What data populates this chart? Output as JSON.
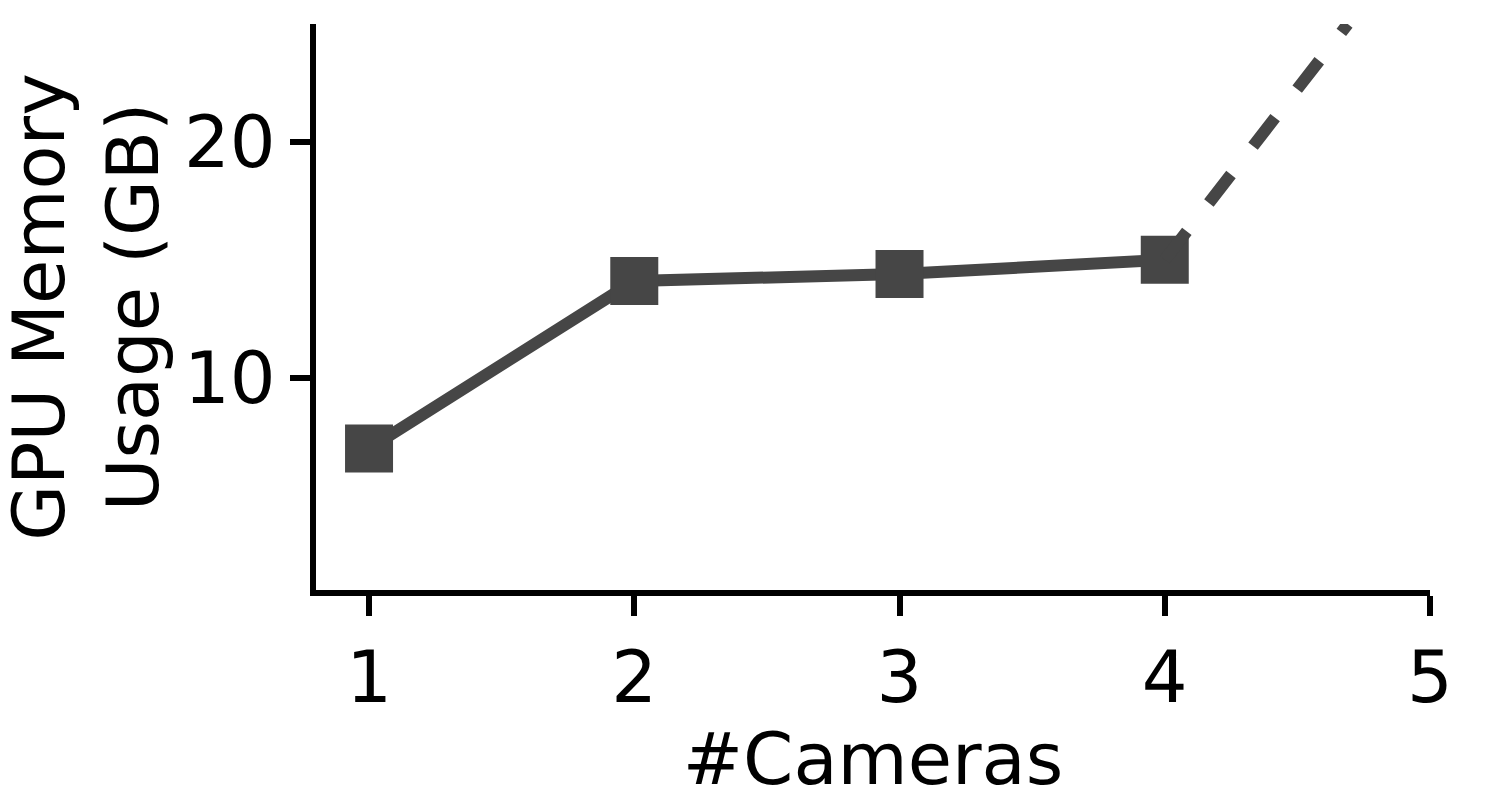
{
  "chart_data": {
    "type": "line",
    "xlabel": "#Cameras",
    "ylabel": "GPU Memory\nUsage (GB)",
    "xlim": [
      0.8,
      5
    ],
    "xticks": [
      1,
      2,
      3,
      4,
      5
    ],
    "ylim": [
      1,
      25
    ],
    "yticks": [
      10,
      20
    ],
    "grid": false,
    "series": [
      {
        "color": "#464646",
        "x": [
          1,
          2,
          3,
          4
        ],
        "values": [
          7,
          14.1,
          14.4,
          15
        ],
        "marker": "square",
        "line_style": "solid"
      },
      {
        "color": "#464646",
        "x": [
          4,
          4.69
        ],
        "values": [
          15,
          25
        ],
        "marker": "none",
        "line_style": "dashed"
      }
    ]
  }
}
